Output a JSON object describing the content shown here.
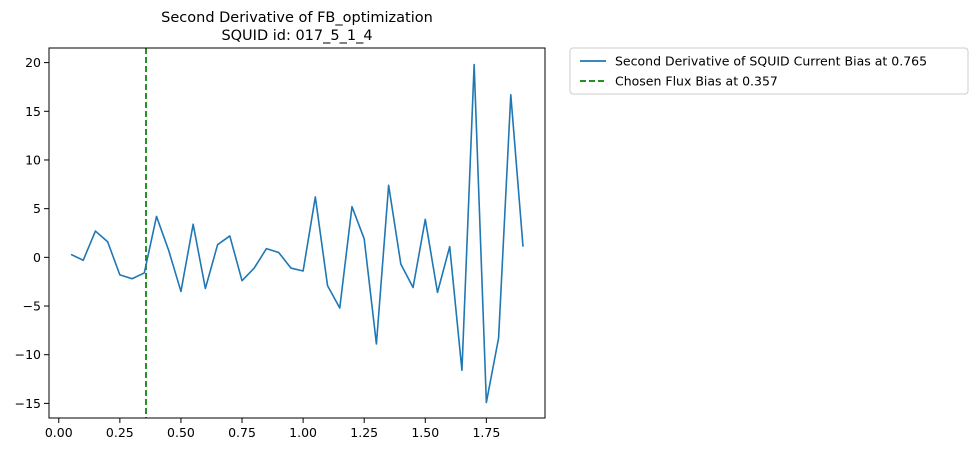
{
  "chart_data": {
    "type": "line",
    "title": [
      "Second Derivative of FB_optimization",
      "SQUID id: 017_5_1_4"
    ],
    "xlabel": "",
    "ylabel": "",
    "xlim": [
      -0.04,
      1.99
    ],
    "ylim": [
      -16.5,
      21.5
    ],
    "xticks": [
      0.0,
      0.25,
      0.5,
      0.75,
      1.0,
      1.25,
      1.5,
      1.75
    ],
    "xtick_labels": [
      "0.00",
      "0.25",
      "0.50",
      "0.75",
      "1.00",
      "1.25",
      "1.50",
      "1.75"
    ],
    "yticks": [
      -15,
      -10,
      -5,
      0,
      5,
      10,
      15,
      20
    ],
    "ytick_labels": [
      "−15",
      "−10",
      "−5",
      "0",
      "5",
      "10",
      "15",
      "20"
    ],
    "grid": false,
    "legend_placement": "outside-top-right",
    "series": [
      {
        "name": "Second Derivative of SQUID Current Bias at 0.765",
        "color": "#1f77b4",
        "style": "solid",
        "x": [
          0.05,
          0.1,
          0.15,
          0.2,
          0.25,
          0.3,
          0.35,
          0.4,
          0.45,
          0.5,
          0.55,
          0.6,
          0.65,
          0.7,
          0.75,
          0.8,
          0.85,
          0.9,
          0.95,
          1.0,
          1.05,
          1.1,
          1.15,
          1.2,
          1.25,
          1.3,
          1.35,
          1.4,
          1.45,
          1.5,
          1.55,
          1.6,
          1.65,
          1.7,
          1.75,
          1.8,
          1.85,
          1.9
        ],
        "y": [
          0.3,
          -0.3,
          2.7,
          1.6,
          -1.8,
          -2.2,
          -1.6,
          4.2,
          0.7,
          -3.5,
          3.4,
          -3.2,
          1.3,
          2.2,
          -2.4,
          -1.1,
          0.9,
          0.5,
          -1.1,
          -1.4,
          6.2,
          -2.9,
          -5.2,
          5.2,
          1.9,
          -8.9,
          7.4,
          -0.7,
          -3.1,
          3.9,
          -3.6,
          1.1,
          -11.6,
          19.8,
          -14.9,
          -8.3,
          16.7,
          1.1
        ]
      }
    ],
    "vlines": [
      {
        "name": "Chosen Flux Bias at 0.357",
        "x": 0.357,
        "color": "#008000",
        "style": "dashed"
      }
    ]
  }
}
